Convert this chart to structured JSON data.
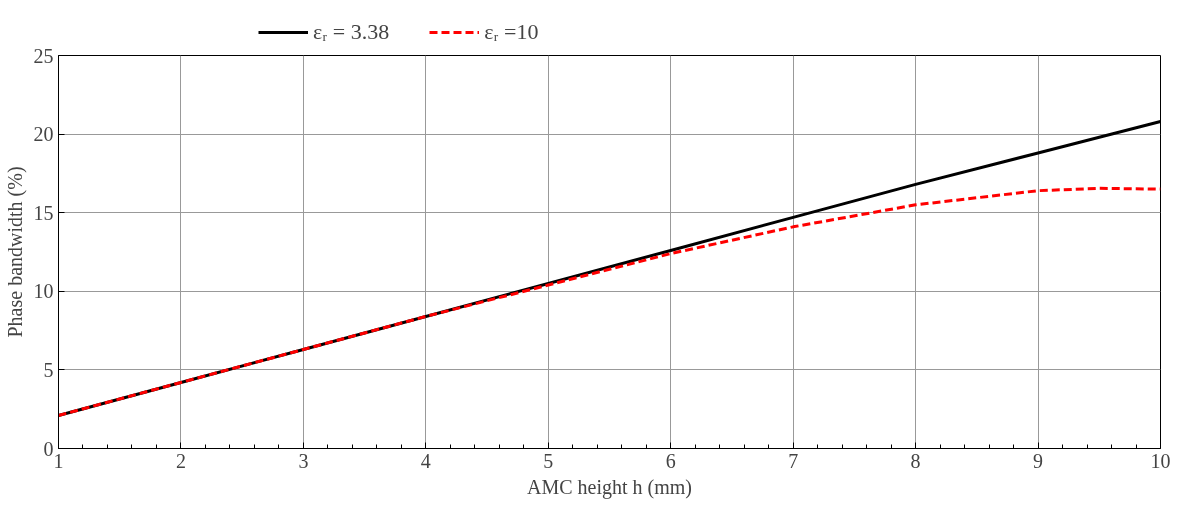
{
  "chart_data": {
    "type": "line",
    "xlabel": "AMC height h (mm)",
    "ylabel": "Phase bandwidth (%)",
    "x": [
      1,
      2,
      3,
      4,
      5,
      6,
      7,
      8,
      9,
      9.5,
      10
    ],
    "series": [
      {
        "name": "εᵣ = 3.38",
        "color": "#000000",
        "line_style": "solid",
        "values": [
          2.1,
          4.2,
          6.3,
          8.4,
          10.5,
          12.6,
          14.7,
          16.8,
          18.8,
          19.8,
          20.8
        ]
      },
      {
        "name": "εᵣ =10",
        "color": "#ff0000",
        "line_style": "dashed",
        "values": [
          2.1,
          4.2,
          6.3,
          8.4,
          10.4,
          12.4,
          14.1,
          15.5,
          16.4,
          16.55,
          16.5
        ]
      }
    ],
    "xlim": [
      1,
      10
    ],
    "xticks": [
      1,
      2,
      3,
      4,
      5,
      6,
      7,
      8,
      9,
      10
    ],
    "ylim": [
      0,
      25
    ],
    "yticks": [
      0,
      5,
      10,
      15,
      20,
      25
    ],
    "grid": true,
    "legend": "top",
    "marker": "none"
  }
}
